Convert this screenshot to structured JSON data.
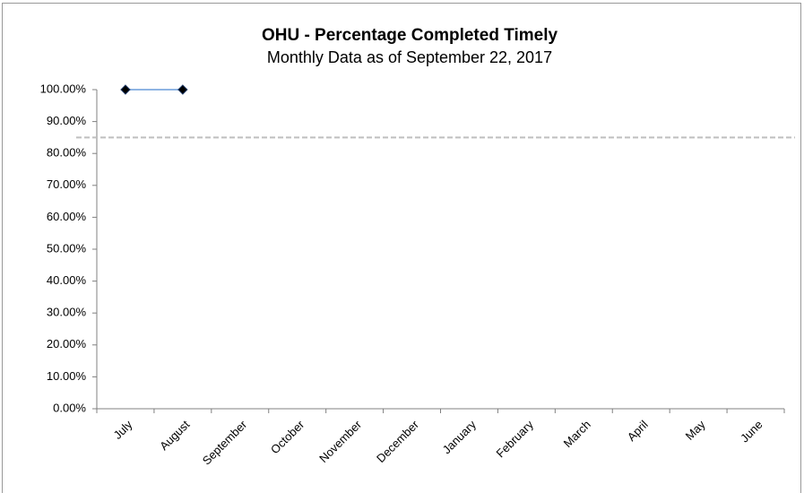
{
  "chart_data": {
    "type": "line",
    "title": "OHU - Percentage Completed Timely",
    "subtitle": "Monthly Data as of September 22, 2017",
    "categories": [
      "July",
      "August",
      "September",
      "October",
      "November",
      "December",
      "January",
      "February",
      "March",
      "April",
      "May",
      "June"
    ],
    "series": [
      {
        "color": "#1f3864",
        "line_color": "#8eb4e3",
        "values": [
          100,
          100,
          null,
          null,
          null,
          null,
          null,
          null,
          null,
          null,
          null,
          null
        ]
      }
    ],
    "reference_line": {
      "value": 85,
      "color": "#bfbfbf"
    },
    "ylim": [
      0,
      100
    ],
    "yticks": [
      {
        "value": 0,
        "label": "0.00%"
      },
      {
        "value": 10,
        "label": "10.00%"
      },
      {
        "value": 20,
        "label": "20.00%"
      },
      {
        "value": 30,
        "label": "30.00%"
      },
      {
        "value": 40,
        "label": "40.00%"
      },
      {
        "value": 50,
        "label": "50.00%"
      },
      {
        "value": 60,
        "label": "60.00%"
      },
      {
        "value": 70,
        "label": "70.00%"
      },
      {
        "value": 80,
        "label": "80.00%"
      },
      {
        "value": 90,
        "label": "90.00%"
      },
      {
        "value": 100,
        "label": "100.00%"
      }
    ],
    "grid": false
  }
}
